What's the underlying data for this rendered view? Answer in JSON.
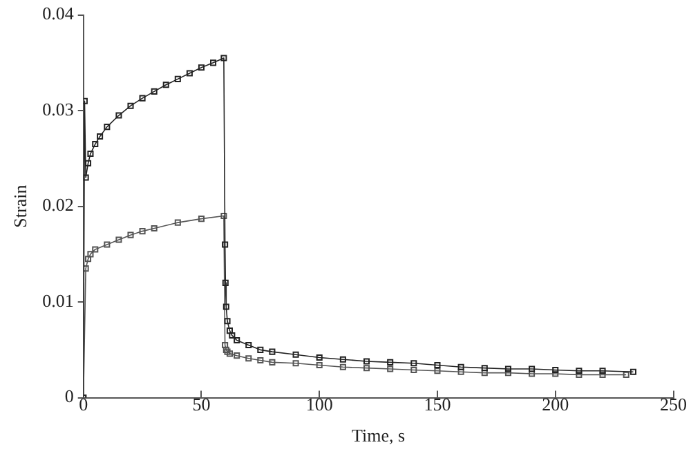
{
  "chart_data": {
    "type": "line",
    "xlabel": "Time, s",
    "ylabel": "Strain",
    "xlim": [
      0,
      250
    ],
    "xticks": [
      0,
      50,
      100,
      150,
      200,
      250
    ],
    "ylim": [
      0,
      0.04
    ],
    "yticks": [
      0,
      0.01,
      0.02,
      0.03,
      0.04
    ],
    "grid": false,
    "legend": false,
    "marker": "square",
    "line_style": "solid",
    "series": [
      {
        "color": "#222222",
        "x": [
          0,
          0.5,
          1,
          2,
          3,
          5,
          7,
          10,
          15,
          20,
          25,
          30,
          35,
          40,
          45,
          50,
          55,
          59.5,
          60,
          60.2,
          60.5,
          61,
          62,
          63,
          65,
          70,
          75,
          80,
          90,
          100,
          110,
          120,
          130,
          140,
          150,
          160,
          170,
          180,
          190,
          200,
          210,
          220,
          233
        ],
        "values": [
          0,
          0.031,
          0.023,
          0.0245,
          0.0255,
          0.0265,
          0.0273,
          0.0283,
          0.0295,
          0.0305,
          0.0313,
          0.032,
          0.0327,
          0.0333,
          0.0339,
          0.0345,
          0.035,
          0.0355,
          0.016,
          0.012,
          0.0095,
          0.008,
          0.007,
          0.0065,
          0.006,
          0.0055,
          0.005,
          0.0048,
          0.0045,
          0.0042,
          0.004,
          0.0038,
          0.0037,
          0.0036,
          0.0034,
          0.0032,
          0.0031,
          0.003,
          0.003,
          0.0029,
          0.0028,
          0.0028,
          0.0027
        ]
      },
      {
        "color": "#555555",
        "x": [
          0,
          1,
          2,
          3,
          5,
          10,
          15,
          20,
          25,
          30,
          40,
          50,
          59.5,
          60,
          60.5,
          61,
          62,
          65,
          70,
          75,
          80,
          90,
          100,
          110,
          120,
          130,
          140,
          150,
          160,
          170,
          180,
          190,
          200,
          210,
          220,
          230
        ],
        "values": [
          0,
          0.0135,
          0.0145,
          0.015,
          0.0155,
          0.016,
          0.0165,
          0.017,
          0.0174,
          0.0177,
          0.0183,
          0.0187,
          0.019,
          0.0055,
          0.005,
          0.0048,
          0.0046,
          0.0044,
          0.0041,
          0.0039,
          0.0037,
          0.0036,
          0.0034,
          0.0032,
          0.0031,
          0.003,
          0.0029,
          0.0028,
          0.0027,
          0.0026,
          0.0026,
          0.0025,
          0.0025,
          0.0024,
          0.0024,
          0.0024
        ]
      }
    ]
  }
}
